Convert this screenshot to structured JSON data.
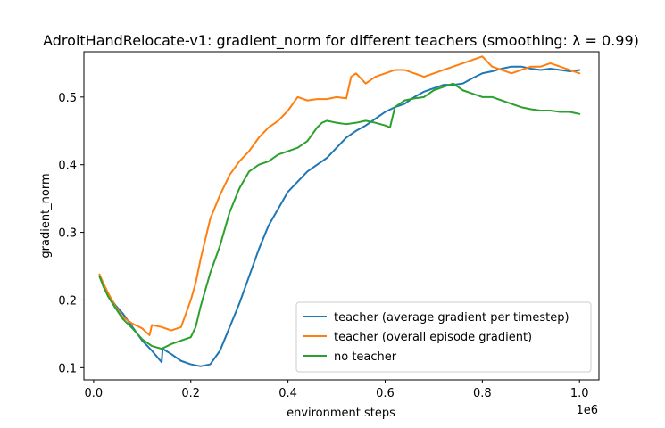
{
  "chart_data": {
    "type": "line",
    "title": "AdroitHandRelocate-v1: gradient_norm for different teachers (smoothing: λ = 0.99)",
    "xlabel": "environment steps",
    "ylabel": "gradient_norm",
    "x_offset_label": "1e6",
    "xlim": [
      -0.02,
      1.04
    ],
    "ylim": [
      0.082,
      0.567
    ],
    "x_ticks": [
      0.0,
      0.2,
      0.4,
      0.6,
      0.8,
      1.0
    ],
    "x_tick_labels": [
      "0.0",
      "0.2",
      "0.4",
      "0.6",
      "0.8",
      "1.0"
    ],
    "y_ticks": [
      0.1,
      0.2,
      0.3,
      0.4,
      0.5
    ],
    "y_tick_labels": [
      "0.1",
      "0.2",
      "0.3",
      "0.4",
      "0.5"
    ],
    "grid": false,
    "legend_position": "lower right",
    "series": [
      {
        "name": "teacher (average gradient per timestep)",
        "color": "#1f77b4",
        "x": [
          0.012,
          0.02,
          0.03,
          0.045,
          0.06,
          0.08,
          0.1,
          0.12,
          0.14,
          0.142,
          0.16,
          0.18,
          0.2,
          0.22,
          0.24,
          0.26,
          0.28,
          0.3,
          0.32,
          0.34,
          0.36,
          0.38,
          0.4,
          0.42,
          0.44,
          0.46,
          0.48,
          0.5,
          0.52,
          0.54,
          0.56,
          0.58,
          0.6,
          0.62,
          0.64,
          0.66,
          0.68,
          0.7,
          0.72,
          0.74,
          0.76,
          0.78,
          0.8,
          0.82,
          0.84,
          0.86,
          0.88,
          0.9,
          0.92,
          0.94,
          0.96,
          0.98,
          1.0
        ],
        "values": [
          0.235,
          0.222,
          0.208,
          0.192,
          0.18,
          0.16,
          0.14,
          0.125,
          0.108,
          0.128,
          0.12,
          0.11,
          0.105,
          0.102,
          0.105,
          0.125,
          0.16,
          0.195,
          0.235,
          0.275,
          0.31,
          0.335,
          0.36,
          0.375,
          0.39,
          0.4,
          0.41,
          0.425,
          0.44,
          0.45,
          0.458,
          0.468,
          0.478,
          0.485,
          0.49,
          0.5,
          0.508,
          0.513,
          0.518,
          0.518,
          0.52,
          0.528,
          0.535,
          0.538,
          0.542,
          0.545,
          0.545,
          0.542,
          0.54,
          0.542,
          0.54,
          0.538,
          0.54
        ]
      },
      {
        "name": "teacher (overall episode gradient)",
        "color": "#ff7f0e",
        "x": [
          0.012,
          0.02,
          0.03,
          0.045,
          0.06,
          0.08,
          0.1,
          0.115,
          0.12,
          0.14,
          0.16,
          0.18,
          0.2,
          0.21,
          0.22,
          0.23,
          0.24,
          0.26,
          0.28,
          0.3,
          0.32,
          0.34,
          0.36,
          0.38,
          0.4,
          0.42,
          0.44,
          0.46,
          0.48,
          0.5,
          0.52,
          0.53,
          0.54,
          0.56,
          0.58,
          0.6,
          0.62,
          0.64,
          0.66,
          0.68,
          0.7,
          0.72,
          0.74,
          0.76,
          0.78,
          0.8,
          0.82,
          0.84,
          0.86,
          0.88,
          0.9,
          0.92,
          0.94,
          0.96,
          0.98,
          1.0
        ],
        "values": [
          0.238,
          0.225,
          0.21,
          0.19,
          0.175,
          0.165,
          0.158,
          0.148,
          0.163,
          0.16,
          0.155,
          0.16,
          0.2,
          0.225,
          0.26,
          0.29,
          0.32,
          0.355,
          0.385,
          0.405,
          0.42,
          0.44,
          0.455,
          0.465,
          0.48,
          0.5,
          0.495,
          0.497,
          0.497,
          0.5,
          0.498,
          0.53,
          0.535,
          0.52,
          0.53,
          0.535,
          0.54,
          0.54,
          0.535,
          0.53,
          0.535,
          0.54,
          0.545,
          0.55,
          0.555,
          0.56,
          0.545,
          0.54,
          0.535,
          0.54,
          0.545,
          0.545,
          0.55,
          0.545,
          0.54,
          0.535
        ]
      },
      {
        "name": "no teacher",
        "color": "#2ca02c",
        "x": [
          0.012,
          0.02,
          0.03,
          0.045,
          0.06,
          0.08,
          0.1,
          0.12,
          0.14,
          0.16,
          0.18,
          0.2,
          0.21,
          0.22,
          0.24,
          0.26,
          0.28,
          0.3,
          0.32,
          0.34,
          0.36,
          0.38,
          0.4,
          0.42,
          0.44,
          0.45,
          0.46,
          0.47,
          0.48,
          0.5,
          0.52,
          0.54,
          0.56,
          0.58,
          0.6,
          0.61,
          0.62,
          0.64,
          0.66,
          0.68,
          0.7,
          0.72,
          0.74,
          0.76,
          0.78,
          0.8,
          0.82,
          0.84,
          0.86,
          0.88,
          0.9,
          0.92,
          0.94,
          0.96,
          0.98,
          1.0
        ],
        "values": [
          0.235,
          0.22,
          0.205,
          0.188,
          0.172,
          0.158,
          0.142,
          0.132,
          0.128,
          0.135,
          0.14,
          0.145,
          0.16,
          0.19,
          0.24,
          0.28,
          0.33,
          0.365,
          0.39,
          0.4,
          0.405,
          0.415,
          0.42,
          0.425,
          0.435,
          0.445,
          0.455,
          0.462,
          0.465,
          0.462,
          0.46,
          0.462,
          0.465,
          0.462,
          0.458,
          0.455,
          0.485,
          0.495,
          0.498,
          0.5,
          0.51,
          0.515,
          0.52,
          0.51,
          0.505,
          0.5,
          0.5,
          0.495,
          0.49,
          0.485,
          0.482,
          0.48,
          0.48,
          0.478,
          0.478,
          0.475
        ]
      }
    ]
  }
}
